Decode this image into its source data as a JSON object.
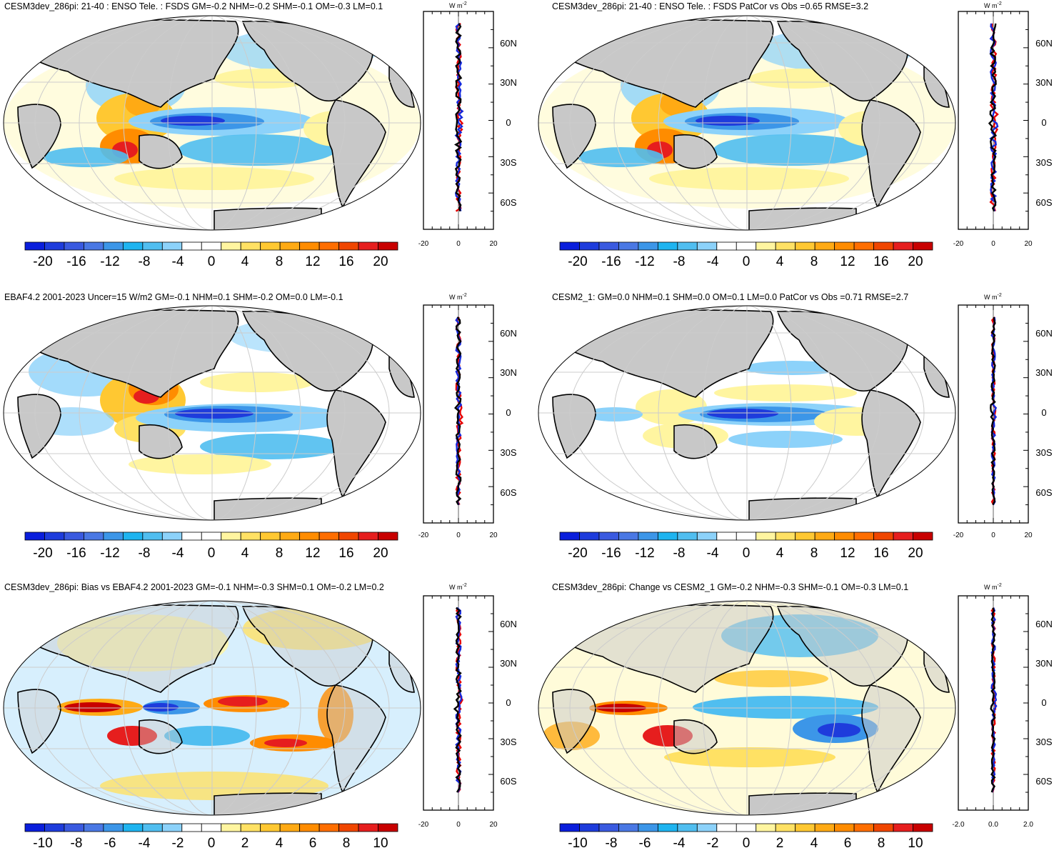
{
  "figure": {
    "colorbar_colors": [
      "#0a1edc",
      "#1e3cdc",
      "#3a5ae0",
      "#4a78e4",
      "#3c96e8",
      "#1eb4f0",
      "#50bef0",
      "#8cd2fa",
      "#ffffff",
      "#ffffff",
      "#fff5a0",
      "#ffe164",
      "#ffc832",
      "#ffaa14",
      "#ff8c00",
      "#ff6e00",
      "#f04600",
      "#e61e1e",
      "#c80000"
    ],
    "map_colors": {
      "land": "#c8c8c8",
      "ocean": "#ffffff",
      "grid": "#cccccc",
      "coast": "#000000"
    },
    "profile_colors": {
      "model": "#e60000",
      "obs": "#1428dc",
      "diff": "#000000"
    }
  },
  "panels": [
    {
      "id": "p1",
      "title": "CESM3dev_286pi: 21-40 : ENSO Tele. : FSDS GM=-0.2 NHM=-0.2 SHM=-0.1 OM=-0.3 LM=0.1",
      "colorbar_labels": [
        "-20",
        "-16",
        "-12",
        "-8",
        "-4",
        "0",
        "4",
        "8",
        "12",
        "16",
        "20"
      ],
      "profile_unit": "W m",
      "profile_unit_exp": "-2",
      "lat_labels": [
        "60N",
        "30N",
        "0",
        "30S",
        "60S"
      ],
      "profile_xticks": [
        "-20",
        "0",
        "20"
      ],
      "lat_values": [
        60,
        30,
        0,
        -30,
        -60
      ],
      "profile_xlim": [
        -20,
        20
      ],
      "profile_amp": 1.4,
      "profile_seed": 1
    },
    {
      "id": "p2",
      "title": "CESM3dev_286pi: 21-40 : ENSO Tele. : FSDS PatCor vs Obs =0.65 RMSE=3.2",
      "colorbar_labels": [
        "-20",
        "-16",
        "-12",
        "-8",
        "-4",
        "0",
        "4",
        "8",
        "12",
        "16",
        "20"
      ],
      "profile_unit": "W m",
      "profile_unit_exp": "-2",
      "lat_labels": [
        "60N",
        "30N",
        "0",
        "30S",
        "60S"
      ],
      "profile_xticks": [
        "-20",
        "0",
        "20"
      ],
      "lat_values": [
        60,
        30,
        0,
        -30,
        -60
      ],
      "profile_xlim": [
        -20,
        20
      ],
      "profile_amp": 1.4,
      "profile_seed": 2
    },
    {
      "id": "p3",
      "title": "EBAF4.2 2001-2023 Uncer=15 W/m2 GM=-0.1 NHM=0.1 SHM=-0.2 OM=0.0 LM=-0.1",
      "colorbar_labels": [
        "-20",
        "-16",
        "-12",
        "-8",
        "-4",
        "0",
        "4",
        "8",
        "12",
        "16",
        "20"
      ],
      "profile_unit": "W m",
      "profile_unit_exp": "-2",
      "lat_labels": [
        "60N",
        "30N",
        "0",
        "30S",
        "60S"
      ],
      "profile_xticks": [
        "-20",
        "0",
        "20"
      ],
      "lat_values": [
        60,
        30,
        0,
        -30,
        -60
      ],
      "profile_xlim": [
        -20,
        20
      ],
      "profile_amp": 1.2,
      "profile_seed": 3
    },
    {
      "id": "p4",
      "title": "CESM2_1: GM=0.0 NHM=0.1 SHM=0.0 OM=0.1 LM=0.0 PatCor vs Obs =0.71 RMSE=2.7",
      "colorbar_labels": [
        "-20",
        "-16",
        "-12",
        "-8",
        "-4",
        "0",
        "4",
        "8",
        "12",
        "16",
        "20"
      ],
      "profile_unit": "W m",
      "profile_unit_exp": "-2",
      "lat_labels": [
        "60N",
        "30N",
        "0",
        "30S",
        "60S"
      ],
      "profile_xticks": [
        "-20",
        "0",
        "20"
      ],
      "lat_values": [
        60,
        30,
        0,
        -30,
        -60
      ],
      "profile_xlim": [
        -20,
        20
      ],
      "profile_amp": 0.9,
      "profile_seed": 4
    },
    {
      "id": "p5",
      "title": "CESM3dev_286pi: Bias vs EBAF4.2 2001-2023 GM=-0.1 NHM=-0.3 SHM=0.1 OM=-0.2 LM=0.2",
      "colorbar_labels": [
        "-10",
        "-8",
        "-6",
        "-4",
        "-2",
        "0",
        "2",
        "4",
        "6",
        "8",
        "10"
      ],
      "profile_unit": "W m",
      "profile_unit_exp": "-2",
      "lat_labels": [
        "60N",
        "30N",
        "0",
        "30S",
        "60S"
      ],
      "profile_xticks": [
        "-20",
        "0",
        "20"
      ],
      "lat_values": [
        60,
        30,
        0,
        -30,
        -60
      ],
      "profile_xlim": [
        -20,
        20
      ],
      "profile_amp": 1.2,
      "profile_seed": 5
    },
    {
      "id": "p6",
      "title": "CESM3dev_286pi: Change vs CESM2_1 GM=-0.2 NHM=-0.3 SHM=-0.1 OM=-0.3 LM=0.1",
      "colorbar_labels": [
        "-10",
        "-8",
        "-6",
        "-4",
        "-2",
        "0",
        "2",
        "4",
        "6",
        "8",
        "10"
      ],
      "profile_unit": "W m",
      "profile_unit_exp": "-2",
      "lat_labels": [
        "60N",
        "30N",
        "0",
        "30S",
        "60S"
      ],
      "profile_xticks": [
        "-2.0",
        "0.0",
        "2.0"
      ],
      "lat_values": [
        60,
        30,
        0,
        -30,
        -60
      ],
      "profile_xlim": [
        -2,
        2
      ],
      "profile_amp": 0.9,
      "profile_seed": 6
    }
  ],
  "chart_data": [
    {
      "type": "heatmap",
      "title": "CESM3dev_286pi: 21-40 : ENSO Tele. : FSDS GM=-0.2 NHM=-0.2 SHM=-0.1 OM=-0.3 LM=0.1",
      "projection": "robinson",
      "colorbar_range": [
        -20,
        20
      ],
      "profile": {
        "type": "line",
        "xlim": [
          -20,
          20
        ],
        "ylim": [
          -90,
          90
        ],
        "series": [
          "model",
          "obs",
          "diff"
        ]
      }
    },
    {
      "type": "heatmap",
      "title": "CESM3dev_286pi: 21-40 : ENSO Tele. : FSDS PatCor vs Obs =0.65 RMSE=3.2",
      "projection": "robinson",
      "colorbar_range": [
        -20,
        20
      ],
      "profile": {
        "type": "line",
        "xlim": [
          -20,
          20
        ],
        "ylim": [
          -90,
          90
        ],
        "series": [
          "model",
          "obs",
          "diff"
        ]
      }
    },
    {
      "type": "heatmap",
      "title": "EBAF4.2 2001-2023 Uncer=15 W/m2 GM=-0.1 NHM=0.1 SHM=-0.2 OM=0.0 LM=-0.1",
      "projection": "robinson",
      "colorbar_range": [
        -20,
        20
      ],
      "profile": {
        "type": "line",
        "xlim": [
          -20,
          20
        ],
        "ylim": [
          -90,
          90
        ],
        "series": [
          "model",
          "obs",
          "diff"
        ]
      }
    },
    {
      "type": "heatmap",
      "title": "CESM2_1: GM=0.0 NHM=0.1 SHM=0.0 OM=0.1 LM=0.0 PatCor vs Obs =0.71 RMSE=2.7",
      "projection": "robinson",
      "colorbar_range": [
        -20,
        20
      ],
      "profile": {
        "type": "line",
        "xlim": [
          -20,
          20
        ],
        "ylim": [
          -90,
          90
        ],
        "series": [
          "model",
          "obs",
          "diff"
        ]
      }
    },
    {
      "type": "heatmap",
      "title": "CESM3dev_286pi: Bias vs EBAF4.2 2001-2023 GM=-0.1 NHM=-0.3 SHM=0.1 OM=-0.2 LM=0.2",
      "projection": "robinson",
      "colorbar_range": [
        -10,
        10
      ],
      "profile": {
        "type": "line",
        "xlim": [
          -20,
          20
        ],
        "ylim": [
          -90,
          90
        ],
        "series": [
          "model",
          "obs",
          "diff"
        ]
      }
    },
    {
      "type": "heatmap",
      "title": "CESM3dev_286pi: Change vs CESM2_1 GM=-0.2 NHM=-0.3 SHM=-0.1 OM=-0.3 LM=0.1",
      "projection": "robinson",
      "colorbar_range": [
        -10,
        10
      ],
      "profile": {
        "type": "line",
        "xlim": [
          -2,
          2
        ],
        "ylim": [
          -90,
          90
        ],
        "series": [
          "model",
          "obs",
          "diff"
        ]
      }
    }
  ]
}
